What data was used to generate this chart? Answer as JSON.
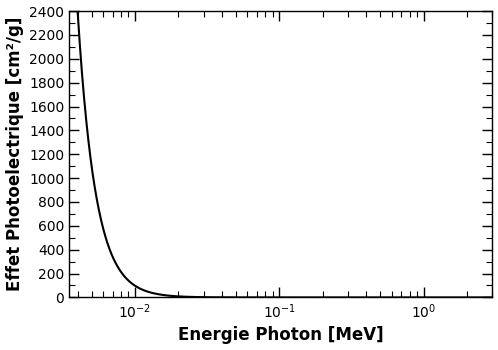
{
  "xlabel": "Energie Photon [MeV]",
  "ylabel": "Effet Photoelectrique [cm²/g]",
  "xmin": 0.0035,
  "xmax": 3.0,
  "ymin": 0,
  "ymax": 2400,
  "yticks": [
    0,
    200,
    400,
    600,
    800,
    1000,
    1200,
    1400,
    1600,
    1800,
    2000,
    2200,
    2400
  ],
  "line_color": "#000000",
  "line_width": 1.5,
  "background_color": "#ffffff",
  "xlabel_fontsize": 12,
  "ylabel_fontsize": 12,
  "tick_fontsize": 10,
  "power_law_n": 3.49,
  "power_law_A_ref_E": 0.004,
  "power_law_A_ref_Y": 2400
}
